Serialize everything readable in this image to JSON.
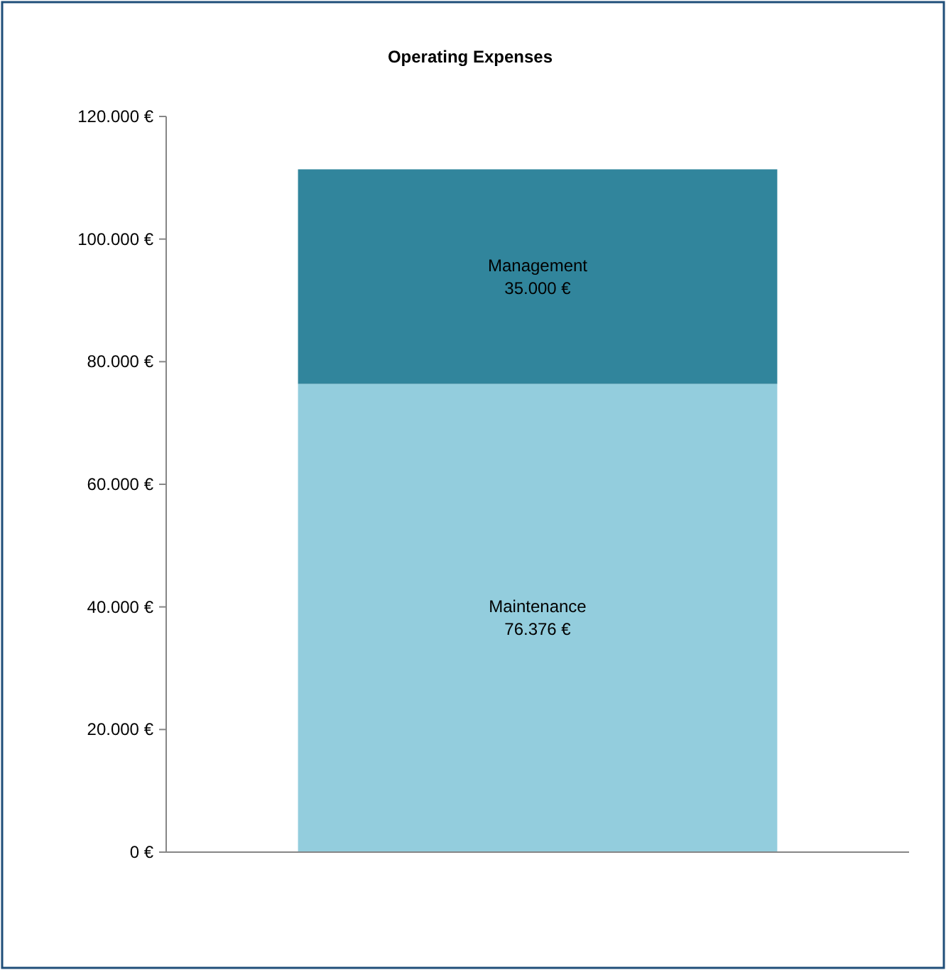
{
  "chart_data": {
    "type": "bar",
    "title": "Operating Expenses",
    "categories": [
      null
    ],
    "stacked": true,
    "series": [
      {
        "name": "Maintenance",
        "color": "#93cddd",
        "values": [
          76376
        ],
        "value_labels": [
          "76.376 €"
        ]
      },
      {
        "name": "Management",
        "color": "#31859c",
        "values": [
          35000
        ],
        "value_labels": [
          "35.000 €"
        ]
      }
    ],
    "ylim": [
      0,
      120000
    ],
    "yticks": [
      {
        "value": 0,
        "label": "0 €"
      },
      {
        "value": 20000,
        "label": "20.000 €"
      },
      {
        "value": 40000,
        "label": "40.000 €"
      },
      {
        "value": 60000,
        "label": "60.000 €"
      },
      {
        "value": 80000,
        "label": "80.000 €"
      },
      {
        "value": 100000,
        "label": "100.000 €"
      },
      {
        "value": 120000,
        "label": "120.000 €"
      }
    ],
    "grid": false
  }
}
